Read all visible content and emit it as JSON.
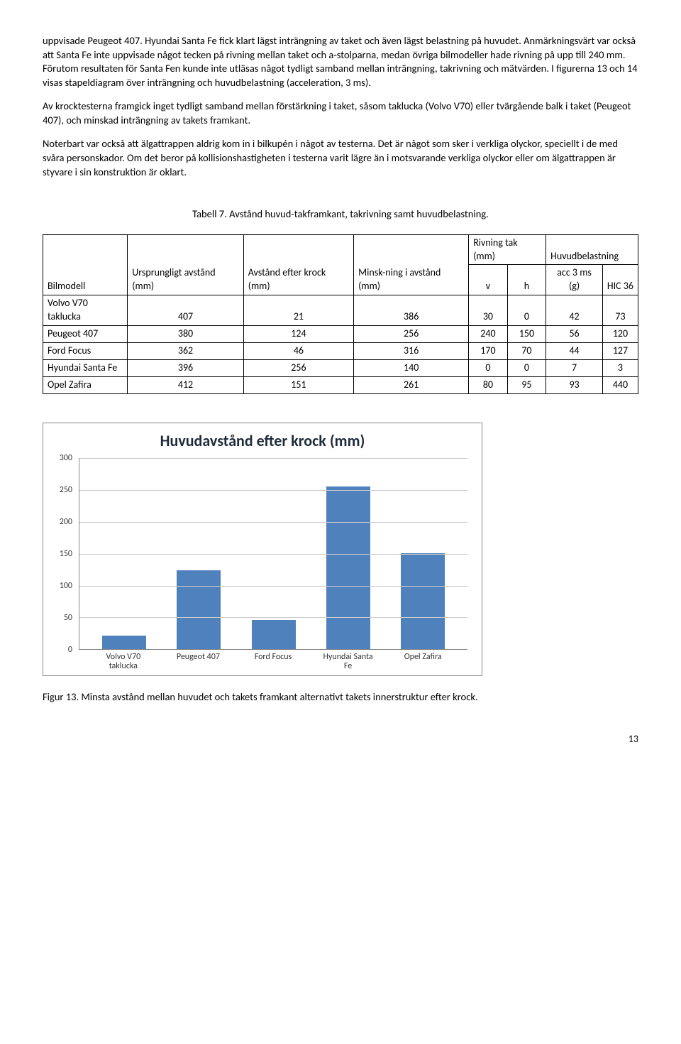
{
  "paragraphs": {
    "p1": "uppvisade Peugeot 407. Hyundai Santa Fe fick klart lägst inträngning av taket och även lägst belastning på huvudet. Anmärkningsvärt var också att Santa Fe inte uppvisade något tecken på rivning mellan taket och a-stolparna, medan övriga bilmodeller hade rivning på upp till 240 mm. Förutom resultaten för Santa Fen kunde inte utläsas något tydligt samband mellan inträngning, takrivning och mätvärden. I figurerna 13 och 14 visas stapeldiagram över inträngning och huvudbelastning (acceleration, 3 ms).",
    "p2": "Av krocktesterna framgick inget tydligt samband mellan förstärkning i taket, såsom taklucka (Volvo V70) eller tvärgående balk i taket (Peugeot 407), och minskad inträngning av takets framkant.",
    "p3": "Noterbart var också att älgattrappen aldrig kom in i bilkupén i något av testerna. Det är något som sker i verkliga olyckor, speciellt i de med svåra personskador. Om det beror på kollisionshastigheten i testerna varit lägre än i motsvarande verkliga olyckor eller om älgattrappen är styvare i sin konstruktion är oklart."
  },
  "table": {
    "caption": "Tabell 7. Avstånd huvud-takframkant, takrivning samt huvudbelastning.",
    "headers": {
      "c1": "Bilmodell",
      "c2": "Ursprungligt avstånd (mm)",
      "c3": "Avstånd efter krock (mm)",
      "c4": "Minsk-ning i avstånd (mm)",
      "c5": "Rivning tak (mm)",
      "c6": "Huvudbelastning",
      "sub_v": "v",
      "sub_h": "h",
      "sub_acc": "acc 3 ms (g)",
      "sub_hic": "HIC 36"
    },
    "rows": [
      {
        "model": "Volvo V70 taklucka",
        "orig": "407",
        "after": "21",
        "reduc": "386",
        "v": "30",
        "h": "0",
        "acc": "42",
        "hic": "73"
      },
      {
        "model": "Peugeot 407",
        "orig": "380",
        "after": "124",
        "reduc": "256",
        "v": "240",
        "h": "150",
        "acc": "56",
        "hic": "120"
      },
      {
        "model": "Ford Focus",
        "orig": "362",
        "after": "46",
        "reduc": "316",
        "v": "170",
        "h": "70",
        "acc": "44",
        "hic": "127"
      },
      {
        "model": "Hyundai Santa Fe",
        "orig": "396",
        "after": "256",
        "reduc": "140",
        "v": "0",
        "h": "0",
        "acc": "7",
        "hic": "3"
      },
      {
        "model": "Opel Zafira",
        "orig": "412",
        "after": "151",
        "reduc": "261",
        "v": "80",
        "h": "95",
        "acc": "93",
        "hic": "440"
      }
    ]
  },
  "chart": {
    "title": "Huvudavstånd efter krock (mm)",
    "ylim": [
      0,
      300
    ],
    "ytick_step": 50,
    "bar_color": "#4f81bd",
    "grid_color": "#cccccc",
    "categories": [
      "Volvo V70\ntaklucka",
      "Peugeot 407",
      "Ford Focus",
      "Hyundai Santa\nFe",
      "Opel Zafira"
    ],
    "values": [
      21,
      124,
      46,
      256,
      151
    ]
  },
  "figure_caption": "Figur 13. Minsta avstånd mellan huvudet och takets framkant alternativt takets innerstruktur efter krock.",
  "page_number": "13"
}
